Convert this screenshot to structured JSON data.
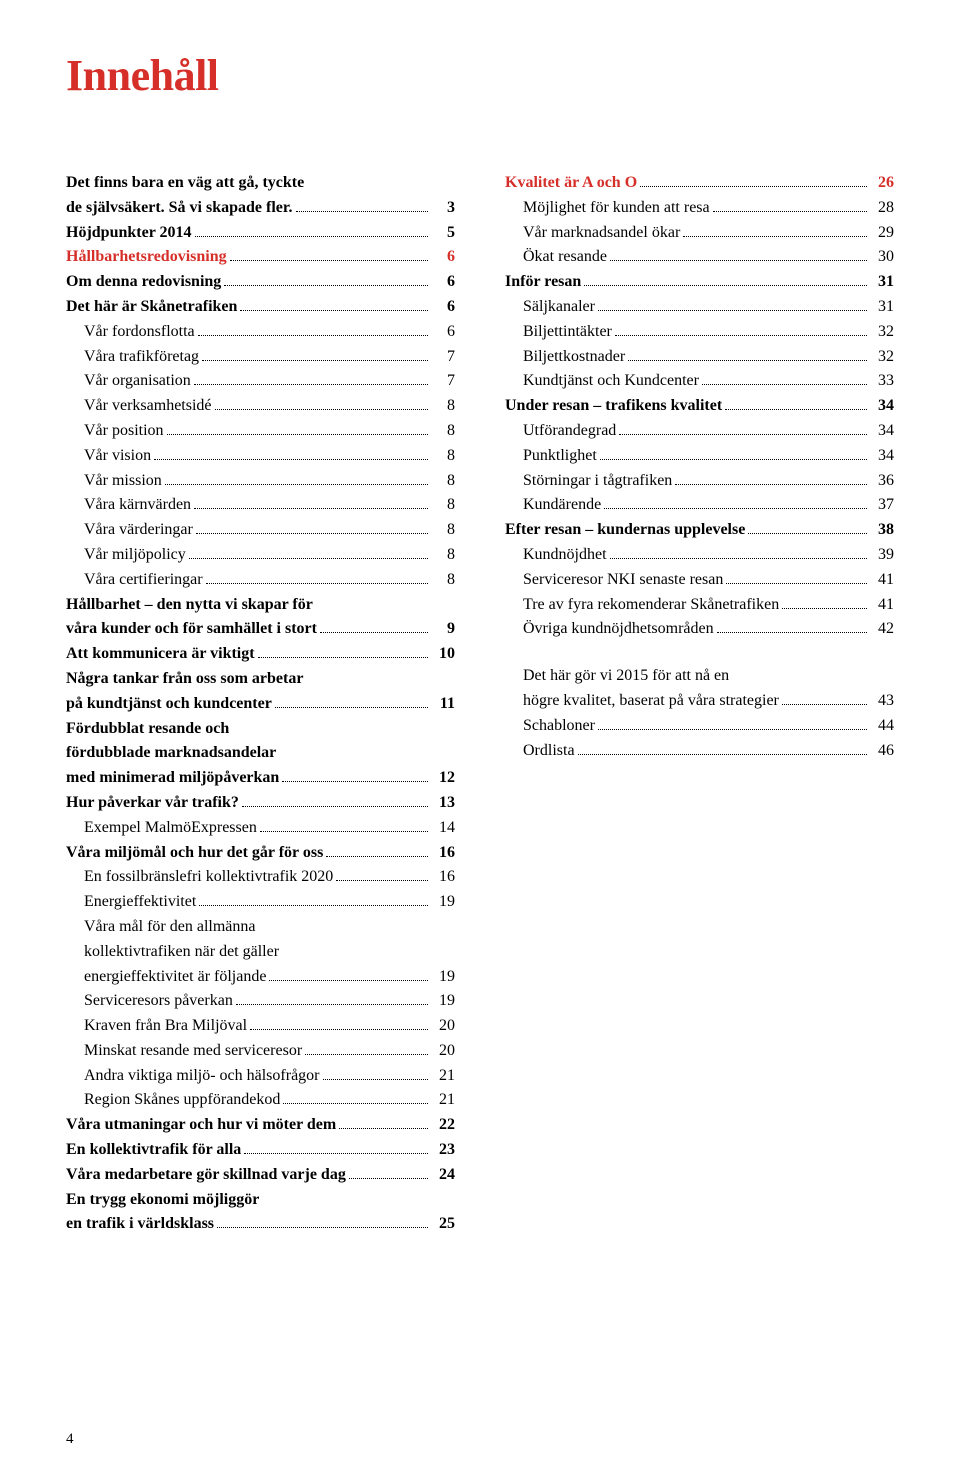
{
  "title": "Innehåll",
  "page_number": "4",
  "colors": {
    "accent": "#d62f29",
    "text": "#000000",
    "bg": "#ffffff"
  },
  "typography": {
    "title_fontsize": 44,
    "body_fontsize": 16,
    "line_height": 1.55
  },
  "left_col": [
    {
      "type": "cont",
      "bold": true,
      "text": "Det finns bara en väg att gå, tyckte"
    },
    {
      "type": "line",
      "bold": true,
      "label": "de självsäkert. Så vi skapade fler.",
      "page": "3"
    },
    {
      "type": "line",
      "bold": true,
      "label": "Höjdpunkter 2014",
      "page": "5"
    },
    {
      "type": "line",
      "red": true,
      "label": "Hållbarhetsredovisning",
      "page": "6"
    },
    {
      "type": "line",
      "bold": true,
      "label": "Om denna redovisning",
      "page": "6"
    },
    {
      "type": "line",
      "bold": true,
      "label": "Det här är Skånetrafiken",
      "page": "6"
    },
    {
      "type": "line",
      "indent": 1,
      "label": "Vår fordonsflotta",
      "page": "6"
    },
    {
      "type": "line",
      "indent": 1,
      "label": "Våra trafikföretag",
      "page": "7"
    },
    {
      "type": "line",
      "indent": 1,
      "label": "Vår organisation",
      "page": "7"
    },
    {
      "type": "line",
      "indent": 1,
      "label": "Vår verksamhetsidé",
      "page": "8"
    },
    {
      "type": "line",
      "indent": 1,
      "label": "Vår position",
      "page": "8"
    },
    {
      "type": "line",
      "indent": 1,
      "label": "Vår vision",
      "page": "8"
    },
    {
      "type": "line",
      "indent": 1,
      "label": "Vår mission",
      "page": "8"
    },
    {
      "type": "line",
      "indent": 1,
      "label": "Våra kärnvärden",
      "page": "8"
    },
    {
      "type": "line",
      "indent": 1,
      "label": "Våra värderingar",
      "page": "8"
    },
    {
      "type": "line",
      "indent": 1,
      "label": "Vår miljöpolicy",
      "page": "8"
    },
    {
      "type": "line",
      "indent": 1,
      "label": "Våra certifieringar",
      "page": "8"
    },
    {
      "type": "cont",
      "bold": true,
      "text": "Hållbarhet – den nytta vi skapar för"
    },
    {
      "type": "line",
      "bold": true,
      "label": "våra kunder och för samhället i stort",
      "page": "9"
    },
    {
      "type": "line",
      "bold": true,
      "label": "Att kommunicera är viktigt",
      "page": "10"
    },
    {
      "type": "cont",
      "bold": true,
      "text": "Några tankar från oss som arbetar"
    },
    {
      "type": "line",
      "bold": true,
      "label": "på kundtjänst och kundcenter",
      "page": "11"
    },
    {
      "type": "cont",
      "bold": true,
      "text": "Fördubblat resande och"
    },
    {
      "type": "cont",
      "bold": true,
      "text": "fördubblade marknadsandelar"
    },
    {
      "type": "line",
      "bold": true,
      "label": "med minimerad miljöpåverkan",
      "page": "12"
    },
    {
      "type": "line",
      "bold": true,
      "label": "Hur påverkar vår trafik?",
      "page": "13"
    },
    {
      "type": "line",
      "indent": 1,
      "label": "Exempel MalmöExpressen",
      "page": "14"
    },
    {
      "type": "line",
      "bold": true,
      "label": "Våra miljömål och hur det går för oss",
      "page": "16"
    },
    {
      "type": "line",
      "indent": 1,
      "label": "En fossilbränslefri kollektivtrafik 2020",
      "page": "16"
    },
    {
      "type": "line",
      "indent": 1,
      "label": "Energieffektivitet",
      "page": "19"
    },
    {
      "type": "cont",
      "indent": 1,
      "text": "Våra mål för den allmänna"
    },
    {
      "type": "cont",
      "indent": 1,
      "text": "kollektivtrafiken när det gäller"
    },
    {
      "type": "line",
      "indent": 1,
      "label": "energieffektivitet är följande",
      "page": "19"
    },
    {
      "type": "line",
      "indent": 1,
      "label": "Serviceresors påverkan",
      "page": "19"
    },
    {
      "type": "line",
      "indent": 1,
      "label": "Kraven från Bra Miljöval",
      "page": "20"
    },
    {
      "type": "line",
      "indent": 1,
      "label": "Minskat resande med serviceresor",
      "page": "20"
    },
    {
      "type": "line",
      "indent": 1,
      "label": "Andra viktiga miljö- och hälsofrågor",
      "page": "21"
    },
    {
      "type": "line",
      "indent": 1,
      "label": "Region Skånes uppförandekod",
      "page": "21"
    },
    {
      "type": "line",
      "bold": true,
      "label": "Våra utmaningar och hur vi möter dem",
      "page": "22"
    },
    {
      "type": "line",
      "bold": true,
      "label": "En kollektivtrafik för alla",
      "page": "23"
    },
    {
      "type": "line",
      "bold": true,
      "label": "Våra medarbetare gör skillnad varje dag",
      "page": "24"
    },
    {
      "type": "cont",
      "bold": true,
      "text": "En trygg ekonomi möjliggör"
    },
    {
      "type": "line",
      "bold": true,
      "label": "en trafik i världsklass",
      "page": "25"
    }
  ],
  "right_col": [
    {
      "type": "line",
      "red": true,
      "label": "Kvalitet är A och O",
      "page": "26"
    },
    {
      "type": "line",
      "indent": 1,
      "label": "Möjlighet för kunden att resa",
      "page": "28"
    },
    {
      "type": "line",
      "indent": 1,
      "label": "Vår marknadsandel ökar",
      "page": "29"
    },
    {
      "type": "line",
      "indent": 1,
      "label": "Ökat resande",
      "page": "30"
    },
    {
      "type": "line",
      "bold": true,
      "label": "Inför resan",
      "page": "31"
    },
    {
      "type": "line",
      "indent": 1,
      "label": "Säljkanaler",
      "page": "31"
    },
    {
      "type": "line",
      "indent": 1,
      "label": "Biljettintäkter",
      "page": "32"
    },
    {
      "type": "line",
      "indent": 1,
      "label": "Biljettkostnader",
      "page": "32"
    },
    {
      "type": "line",
      "indent": 1,
      "label": "Kundtjänst och Kundcenter",
      "page": "33"
    },
    {
      "type": "line",
      "bold": true,
      "label": "Under resan – trafikens kvalitet",
      "page": "34"
    },
    {
      "type": "line",
      "indent": 1,
      "label": "Utförandegrad",
      "page": "34"
    },
    {
      "type": "line",
      "indent": 1,
      "label": "Punktlighet",
      "page": "34"
    },
    {
      "type": "line",
      "indent": 1,
      "label": "Störningar i tågtrafiken",
      "page": "36"
    },
    {
      "type": "line",
      "indent": 1,
      "label": "Kundärende",
      "page": "37"
    },
    {
      "type": "line",
      "bold": true,
      "label": "Efter resan – kundernas upplevelse",
      "page": "38"
    },
    {
      "type": "line",
      "indent": 1,
      "label": "Kundnöjdhet",
      "page": "39"
    },
    {
      "type": "line",
      "indent": 1,
      "label": "Serviceresor NKI senaste resan",
      "page": "41"
    },
    {
      "type": "line",
      "indent": 1,
      "label": "Tre av fyra rekomenderar Skånetrafiken",
      "page": "41"
    },
    {
      "type": "line",
      "indent": 1,
      "label": "Övriga kundnöjdhetsområden",
      "page": "42"
    },
    {
      "type": "spacer"
    },
    {
      "type": "cont",
      "indent": 1,
      "text": "Det här gör vi 2015 för att nå en"
    },
    {
      "type": "line",
      "indent": 1,
      "label": "högre kvalitet, baserat på våra strategier",
      "page": "43"
    },
    {
      "type": "line",
      "indent": 1,
      "label": "Schabloner",
      "page": "44"
    },
    {
      "type": "line",
      "indent": 1,
      "label": "Ordlista",
      "page": "46"
    }
  ]
}
